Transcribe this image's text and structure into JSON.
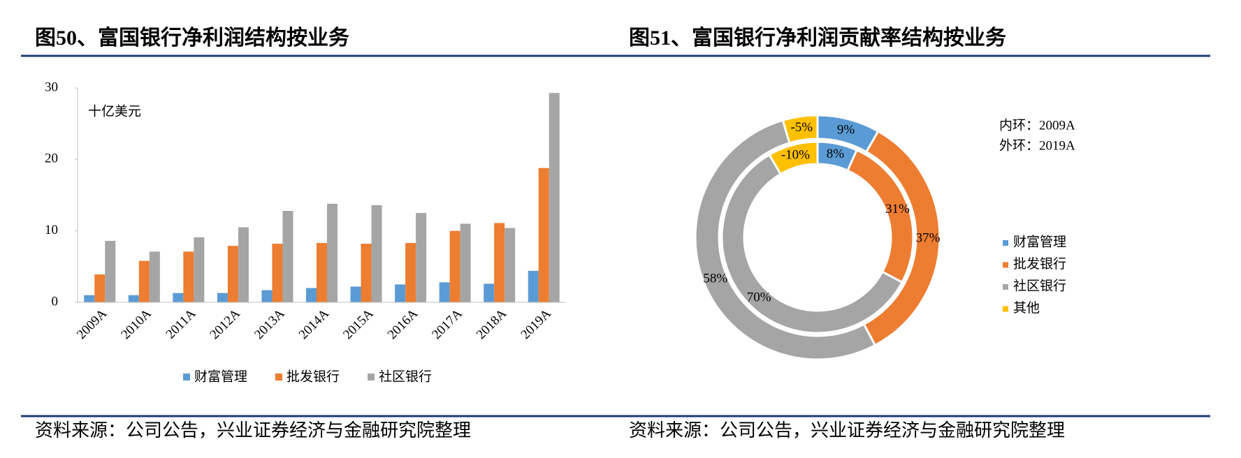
{
  "chart_data": [
    {
      "type": "bar",
      "title": "图50、富国银行净利润结构按业务",
      "unit": "十亿美元",
      "source": "资料来源：公司公告，兴业证券经济与金融研究院整理",
      "categories": [
        "2009A",
        "2010A",
        "2011A",
        "2012A",
        "2013A",
        "2014A",
        "2015A",
        "2016A",
        "2017A",
        "2018A",
        "2019A"
      ],
      "series": [
        {
          "name": "财富管理",
          "color": "#5b9bd5",
          "values": [
            1.0,
            1.0,
            1.3,
            1.3,
            1.7,
            2.0,
            2.2,
            2.5,
            2.8,
            2.6,
            4.4
          ]
        },
        {
          "name": "批发银行",
          "color": "#ed7d31",
          "values": [
            3.9,
            5.8,
            7.1,
            7.9,
            8.2,
            8.3,
            8.2,
            8.3,
            10.0,
            11.1,
            18.8
          ]
        },
        {
          "name": "社区银行",
          "color": "#a5a5a5",
          "values": [
            8.6,
            7.1,
            9.1,
            10.5,
            12.8,
            13.8,
            13.6,
            12.5,
            11.0,
            10.4,
            29.3
          ]
        }
      ],
      "ylim": [
        0,
        30
      ],
      "yticks": [
        0,
        10,
        20,
        30
      ]
    },
    {
      "type": "donut",
      "title": "图51、富国银行净利润贡献率结构按业务",
      "source": "资料来源：公司公告，兴业证券经济与金融研究院整理",
      "categories": [
        "财富管理",
        "批发银行",
        "社区银行",
        "其他"
      ],
      "colors": [
        "#5b9bd5",
        "#ed7d31",
        "#a5a5a5",
        "#ffc000"
      ],
      "series": [
        {
          "name": "内环：2009A",
          "values": [
            8,
            31,
            70,
            -10
          ],
          "value_labels": [
            "8%",
            "31%",
            "70%",
            "-10%"
          ]
        },
        {
          "name": "外环：2019A",
          "values": [
            9,
            37,
            58,
            -5
          ],
          "value_labels": [
            "9%",
            "37%",
            "58%",
            "-5%"
          ]
        }
      ]
    }
  ]
}
